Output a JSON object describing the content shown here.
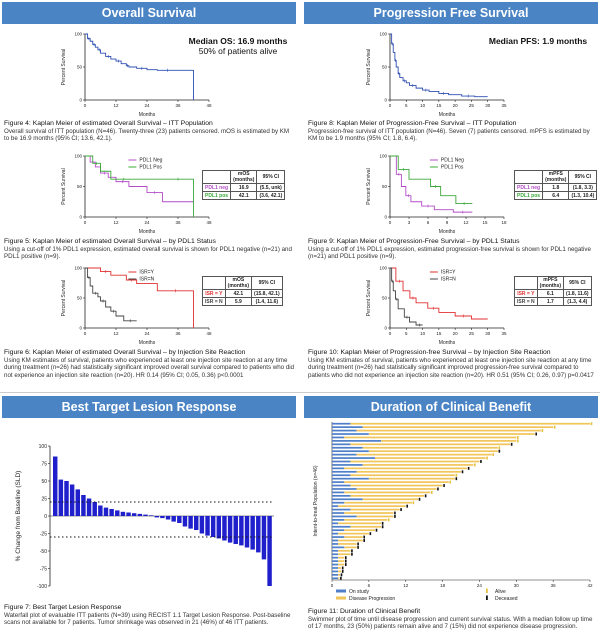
{
  "headers": {
    "os": "Overall Survival",
    "pfs": "Progression Free Survival",
    "btlr": "Best Target Lesion Response",
    "dcb": "Duration of Clinical Benefit"
  },
  "annotations": {
    "os_median": "Median OS: 16.9 months",
    "os_alive": "50% of patients alive",
    "pfs_median": "Median PFS: 1.9 months"
  },
  "captions": {
    "fig4_title": "Figure 4: Kaplan Meier of estimated Overall Survival – ITT Population",
    "fig4_text": "Overall survival of ITT population (N=46). Twenty-three (23) patients censored. mOS is estimated by KM to be 16.9 months (95% CI; 13.6, 42.1).",
    "fig5_title": "Figure 5: Kaplan Meier of estimated Overall Survival – by PDL1 Status",
    "fig5_text": "Using a cut-off of 1% PDL1 expression, estimated overall survival is shown for PDL1 negative (n=21) and PDL1 positive (n=9).",
    "fig6_title": "Figure 6: Kaplan Meier of estimated Overall Survival – by Injection Site Reaction",
    "fig6_text": "Using KM estimates of survival, patients who experienced at least one injection site reaction at any time during treatment (n=26) had statistically significant improved overall survival compared to patients who did not experience an injection site reaction (n=20). HR 0.14 (95% CI; 0.05, 0.36) p<0.0001",
    "fig7_title": "Figure 7: Best Target Lesion Response",
    "fig7_text": "Waterfall plot of evaluable ITT patients (N=39) using RECIST 1.1 Target Lesion Response. Post-baseline scans not available for 7 patients. Tumor shrinkage was observed in 21 (46%) of 46 ITT patients.",
    "fig8_title": "Figure 8: Kaplan Meier of Progression-Free Survival – ITT Population",
    "fig8_text": "Progression-free survival of ITT population (N=46). Seven (7) patients censored. mPFS is estimated by KM to be 1.9 months (95% CI; 1.8, 6.4).",
    "fig9_title": "Figure 9: Kaplan Meier of Progression-Free Survival – by PDL1 Status",
    "fig9_text": "Using a cut-off of 1% PDL1 expression, estimated progression-free survival is shown for PDL1 negative (n=21) and PDL1 positive (n=9).",
    "fig10_title": "Figure 10: Kaplan Meier of Progression-free Survival – by Injection Site Reaction",
    "fig10_text": "Using KM estimates of survival, patients who experienced at least one injection site reaction at any time during treatment (n=26) had statistically significant improved progression-free survival compared to patients who did not experience an injection site reaction (n=20). HR 0.51 (95% CI; 0.26, 0.97) p=0.0417",
    "fig11_title": "Figure 11: Duration of Clinical Benefit",
    "fig11_text": "Swimmer plot of time until disease progression and current survival status. With a median follow up time of 17 months, 23 (50%) patients remain alive and 7 (15%) did not experience disease progression."
  },
  "tables": {
    "os_pdl1": {
      "h1": "mOS",
      "h1b": "(months)",
      "h2": "95% CI",
      "rows": [
        {
          "label": "PDL1 neg",
          "v": "16.9",
          "ci": "(5.5, unk)",
          "color": "#b44cc8"
        },
        {
          "label": "PDL1 pos",
          "v": "42.1",
          "ci": "(3.6, 42.1)",
          "color": "#3aa83a"
        }
      ]
    },
    "os_isr": {
      "h1": "mOS",
      "h1b": "(months)",
      "h2": "95% CI",
      "rows": [
        {
          "label": "ISR = Y",
          "v": "42.1",
          "ci": "(15.8, 42.1)",
          "color": "#e03030"
        },
        {
          "label": "ISR = N",
          "v": "5.9",
          "ci": "(1.4, 11.6)",
          "color": "#444444"
        }
      ]
    },
    "pfs_pdl1": {
      "h1": "mPFS",
      "h1b": "(months)",
      "h2": "95% CI",
      "rows": [
        {
          "label": "PDL1 neg",
          "v": "1.8",
          "ci": "(1.8, 3.3)",
          "color": "#b44cc8"
        },
        {
          "label": "PDL1 pos",
          "v": "6.4",
          "ci": "(1.3, 10.4)",
          "color": "#3aa83a"
        }
      ]
    },
    "pfs_isr": {
      "h1": "mPFS",
      "h1b": "(months)",
      "h2": "95% CI",
      "rows": [
        {
          "label": "ISR = Y",
          "v": "6.1",
          "ci": "(1.8, 11.6)",
          "color": "#e03030"
        },
        {
          "label": "ISR = N",
          "v": "1.7",
          "ci": "(1.3, 4.4)",
          "color": "#444444"
        }
      ]
    }
  },
  "chart_data": [
    {
      "id": "os_itt",
      "type": "line",
      "xlabel": "Months",
      "ylabel": "Percent Survival",
      "xlim": [
        0,
        48
      ],
      "ylim": [
        0,
        100
      ],
      "xticks": [
        0,
        12,
        24,
        36,
        48
      ],
      "yticks": [
        0,
        50,
        100
      ],
      "series": [
        {
          "color": "#2f4fb4",
          "x": [
            0,
            1,
            2,
            3,
            4,
            5,
            6,
            8,
            10,
            12,
            14,
            16,
            17,
            20,
            24,
            28,
            36,
            42
          ],
          "y": [
            100,
            93,
            89,
            84,
            80,
            76,
            71,
            66,
            62,
            59,
            55,
            52,
            50,
            48,
            46,
            45,
            45,
            0
          ]
        }
      ]
    },
    {
      "id": "os_pdl1",
      "type": "line",
      "xlabel": "Months",
      "ylabel": "Percent Survival",
      "xlim": [
        0,
        48
      ],
      "ylim": [
        0,
        100
      ],
      "xticks": [
        0,
        12,
        24,
        36,
        48
      ],
      "yticks": [
        0,
        50,
        100
      ],
      "legend": "top-right",
      "series": [
        {
          "name": "PDL1 Neg",
          "color": "#b44cc8",
          "x": [
            0,
            2,
            4,
            6,
            9,
            12,
            17,
            24,
            30,
            42
          ],
          "y": [
            100,
            90,
            82,
            72,
            65,
            58,
            50,
            40,
            25,
            25
          ]
        },
        {
          "name": "PDL1 Pos",
          "color": "#3aa83a",
          "x": [
            0,
            3,
            6,
            10,
            20,
            30,
            42
          ],
          "y": [
            100,
            88,
            75,
            62,
            62,
            62,
            0
          ]
        }
      ]
    },
    {
      "id": "os_isr",
      "type": "line",
      "xlabel": "Months",
      "ylabel": "Percent Survival",
      "xlim": [
        0,
        48
      ],
      "ylim": [
        0,
        100
      ],
      "xticks": [
        0,
        12,
        24,
        36,
        48
      ],
      "yticks": [
        0,
        50,
        100
      ],
      "legend": "top-right",
      "series": [
        {
          "name": "ISR=Y",
          "color": "#e03030",
          "x": [
            0,
            6,
            10,
            16,
            20,
            28,
            42
          ],
          "y": [
            100,
            94,
            88,
            80,
            74,
            62,
            0
          ]
        },
        {
          "name": "ISR=N",
          "color": "#444444",
          "x": [
            0,
            1,
            2,
            3,
            5,
            6,
            8,
            10,
            12,
            15,
            20
          ],
          "y": [
            100,
            84,
            70,
            58,
            52,
            45,
            35,
            28,
            20,
            12,
            12
          ]
        }
      ]
    },
    {
      "id": "pfs_itt",
      "type": "line",
      "xlabel": "Months",
      "ylabel": "Percent Survival",
      "xlim": [
        0,
        35
      ],
      "ylim": [
        0,
        100
      ],
      "xticks": [
        0,
        5,
        10,
        15,
        20,
        25,
        30,
        35
      ],
      "yticks": [
        0,
        50,
        100
      ],
      "series": [
        {
          "color": "#2f4fb4",
          "x": [
            0,
            0.5,
            1,
            1.5,
            1.9,
            2.5,
            3,
            4,
            5,
            6,
            8,
            10,
            12,
            15,
            18,
            22,
            26,
            30
          ],
          "y": [
            100,
            85,
            72,
            60,
            50,
            40,
            34,
            29,
            26,
            22,
            18,
            15,
            13,
            10,
            8,
            6,
            5,
            5
          ]
        }
      ]
    },
    {
      "id": "pfs_pdl1",
      "type": "line",
      "xlabel": "Months",
      "ylabel": "Percent Survival",
      "xlim": [
        0,
        18
      ],
      "ylim": [
        0,
        100
      ],
      "xticks": [
        0,
        3,
        6,
        9,
        12,
        15,
        18
      ],
      "yticks": [
        0,
        50,
        100
      ],
      "legend": "top-right",
      "series": [
        {
          "name": "PDL1 Neg",
          "color": "#b44cc8",
          "x": [
            0,
            1,
            1.8,
            2.5,
            3.3,
            5,
            7,
            10,
            13
          ],
          "y": [
            100,
            70,
            50,
            35,
            25,
            18,
            12,
            8,
            8
          ]
        },
        {
          "name": "PDL1 Pos",
          "color": "#3aa83a",
          "x": [
            0,
            1.3,
            3,
            6.4,
            8,
            10.4,
            13
          ],
          "y": [
            100,
            78,
            62,
            50,
            35,
            22,
            22
          ]
        }
      ]
    },
    {
      "id": "pfs_isr",
      "type": "line",
      "xlabel": "Months",
      "ylabel": "Percent Survival",
      "xlim": [
        0,
        35
      ],
      "ylim": [
        0,
        100
      ],
      "xticks": [
        0,
        5,
        10,
        15,
        20,
        25,
        30,
        35
      ],
      "yticks": [
        0,
        50,
        100
      ],
      "legend": "top-right",
      "series": [
        {
          "name": "ISR=Y",
          "color": "#e03030",
          "x": [
            0,
            1.8,
            4,
            6.1,
            8,
            11.6,
            15,
            20,
            25,
            30
          ],
          "y": [
            100,
            78,
            62,
            50,
            42,
            33,
            26,
            20,
            15,
            15
          ]
        },
        {
          "name": "ISR=N",
          "color": "#444444",
          "x": [
            0,
            0.5,
            1,
            1.7,
            2.5,
            4.4,
            6,
            8,
            10
          ],
          "y": [
            100,
            78,
            62,
            48,
            32,
            18,
            10,
            5,
            5
          ]
        }
      ]
    },
    {
      "id": "btlr",
      "type": "bar",
      "xlabel": "",
      "ylabel": "% Change from Baseline (SLD)",
      "ylim": [
        -100,
        100
      ],
      "yticks": [
        100,
        75,
        50,
        25,
        0,
        -25,
        -50,
        -75,
        -100
      ],
      "reference_lines": [
        20,
        -30
      ],
      "color": "#1f1fcc",
      "values": [
        85,
        52,
        50,
        45,
        38,
        30,
        25,
        20,
        15,
        12,
        10,
        8,
        6,
        5,
        4,
        3,
        2,
        1,
        -2,
        -3,
        -5,
        -8,
        -10,
        -15,
        -18,
        -20,
        -25,
        -28,
        -30,
        -32,
        -35,
        -38,
        -40,
        -42,
        -45,
        -48,
        -52,
        -62,
        -100
      ]
    },
    {
      "id": "dcb",
      "type": "bar",
      "orientation": "horizontal",
      "xlabel": "",
      "ylabel": "Intent-to-treat Population (n=46)",
      "xlim": [
        0,
        42
      ],
      "xticks": [
        0,
        6,
        12,
        18,
        24,
        30,
        36,
        42
      ],
      "legend": "bottom",
      "legend_items": [
        {
          "name": "On study",
          "color": "#4f7fc8"
        },
        {
          "name": "Disease Progression",
          "color": "#f1c55a"
        },
        {
          "name": "Alive",
          "color": "#e6c040"
        },
        {
          "name": "Deceased",
          "color": "#111111"
        }
      ],
      "series": [
        {
          "name": "On study",
          "color": "#4f7fc8",
          "values": [
            3,
            5,
            4,
            6,
            2,
            8,
            3,
            5,
            6,
            4,
            7,
            3,
            5,
            2,
            4,
            3,
            6,
            2,
            3,
            4,
            2,
            3,
            5,
            2,
            1,
            3,
            2,
            4,
            2,
            1,
            3,
            2,
            1,
            2,
            1,
            1,
            2,
            1,
            1,
            1,
            1,
            1,
            1,
            1,
            1,
            1
          ]
        },
        {
          "name": "Disease Progression",
          "color": "#f1c55a",
          "values": [
            39,
            31,
            30,
            27,
            28,
            22,
            26,
            22,
            21,
            22,
            18,
            21,
            18,
            20,
            17,
            17,
            14,
            17,
            15,
            13,
            14,
            12,
            9,
            11,
            11,
            8,
            8,
            6,
            7,
            7,
            5,
            5,
            5,
            3,
            4,
            3,
            2,
            2,
            2,
            1,
            1,
            1,
            0.5,
            0.5,
            0.3,
            0.2
          ]
        }
      ],
      "endpoint": [
        "alive",
        "alive",
        "alive",
        "dead",
        "alive",
        "alive",
        "dead",
        "alive",
        "dead",
        "alive",
        "alive",
        "dead",
        "alive",
        "dead",
        "dead",
        "alive",
        "dead",
        "alive",
        "dead",
        "dead",
        "alive",
        "dead",
        "dead",
        "alive",
        "dead",
        "dead",
        "dead",
        "dead",
        "alive",
        "dead",
        "dead",
        "dead",
        "dead",
        "dead",
        "dead",
        "dead",
        "dead",
        "dead",
        "dead",
        "dead",
        "dead",
        "dead",
        "dead",
        "dead",
        "dead",
        "dead"
      ]
    }
  ]
}
